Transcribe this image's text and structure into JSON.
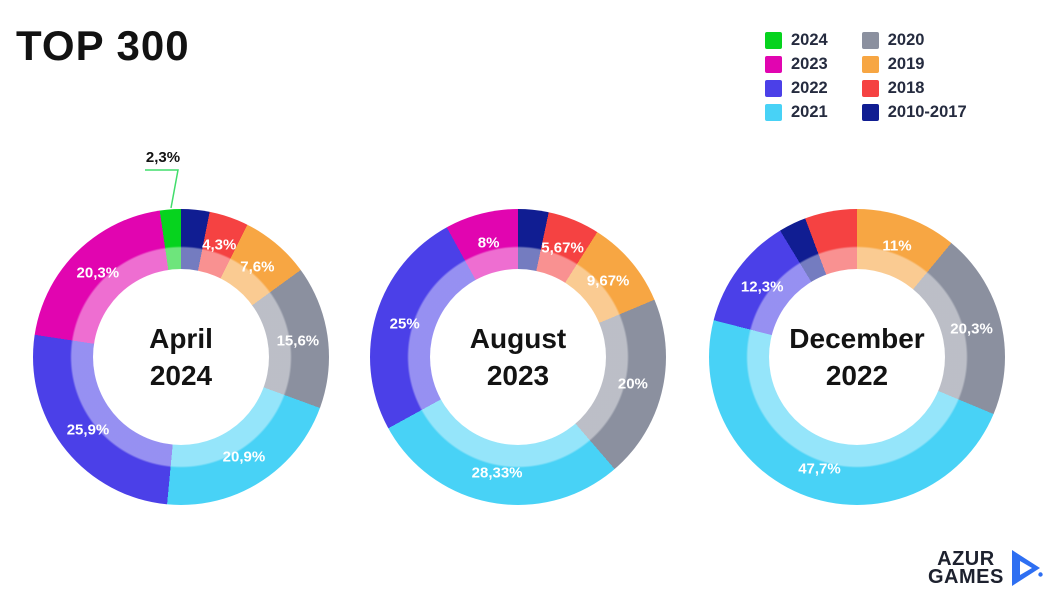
{
  "title": "TOP 300",
  "palette": {
    "2024": "#06d31e",
    "2023": "#e105b0",
    "2022": "#4b40e8",
    "2021": "#48d2f6",
    "2020": "#8b909f",
    "2019": "#f7a643",
    "2018": "#f54242",
    "2010-2017": "#101d92"
  },
  "legend": {
    "columns": [
      [
        {
          "label": "2024",
          "color": "#06d31e"
        },
        {
          "label": "2023",
          "color": "#e105b0"
        },
        {
          "label": "2022",
          "color": "#4b40e8"
        },
        {
          "label": "2021",
          "color": "#48d2f6"
        }
      ],
      [
        {
          "label": "2020",
          "color": "#8b909f"
        },
        {
          "label": "2019",
          "color": "#f7a643"
        },
        {
          "label": "2018",
          "color": "#f54242"
        },
        {
          "label": "2010-2017",
          "color": "#101d92"
        }
      ]
    ]
  },
  "chart_data": [
    {
      "type": "pie",
      "variant": "donut",
      "title": "April 2024",
      "center_label": [
        "April",
        "2024"
      ],
      "slices": [
        {
          "year": "2010-2017",
          "value": 3.1,
          "label": null
        },
        {
          "year": "2018",
          "value": 4.3,
          "label": "4,3%"
        },
        {
          "year": "2019",
          "value": 7.6,
          "label": "7,6%"
        },
        {
          "year": "2020",
          "value": 15.6,
          "label": "15,6%"
        },
        {
          "year": "2021",
          "value": 20.9,
          "label": "20,9%"
        },
        {
          "year": "2022",
          "value": 25.9,
          "label": "25,9%"
        },
        {
          "year": "2023",
          "value": 20.3,
          "label": "20,3%"
        },
        {
          "year": "2024",
          "value": 2.3,
          "label": "2,3%",
          "label_outside": true
        }
      ],
      "callout": {
        "text": "2,3%",
        "color": "#41dd6b"
      }
    },
    {
      "type": "pie",
      "variant": "donut",
      "title": "August 2023",
      "center_label": [
        "August",
        "2023"
      ],
      "slices": [
        {
          "year": "2010-2017",
          "value": 3.33,
          "label": null
        },
        {
          "year": "2018",
          "value": 5.67,
          "label": "5,67%"
        },
        {
          "year": "2019",
          "value": 9.67,
          "label": "9,67%"
        },
        {
          "year": "2020",
          "value": 20.0,
          "label": "20%"
        },
        {
          "year": "2021",
          "value": 28.33,
          "label": "28,33%"
        },
        {
          "year": "2022",
          "value": 25.0,
          "label": "25%"
        },
        {
          "year": "2023",
          "value": 8.0,
          "label": "8%"
        }
      ]
    },
    {
      "type": "pie",
      "variant": "donut",
      "title": "December 2022",
      "center_label": [
        "December",
        "2022"
      ],
      "slices": [
        {
          "year": "2019",
          "value": 11.0,
          "label": "11%"
        },
        {
          "year": "2020",
          "value": 20.3,
          "label": "20,3%"
        },
        {
          "year": "2021",
          "value": 47.7,
          "label": "47,7%"
        },
        {
          "year": "2022",
          "value": 12.3,
          "label": "12,3%"
        },
        {
          "year": "2010-2017",
          "value": 3.0,
          "label": null
        },
        {
          "year": "2018",
          "value": 5.7,
          "label": null
        }
      ]
    }
  ],
  "logo": {
    "line1": "AZUR",
    "line2": "GAMES",
    "accent": "#2e6ff2",
    "text_color": "#1d212e"
  }
}
